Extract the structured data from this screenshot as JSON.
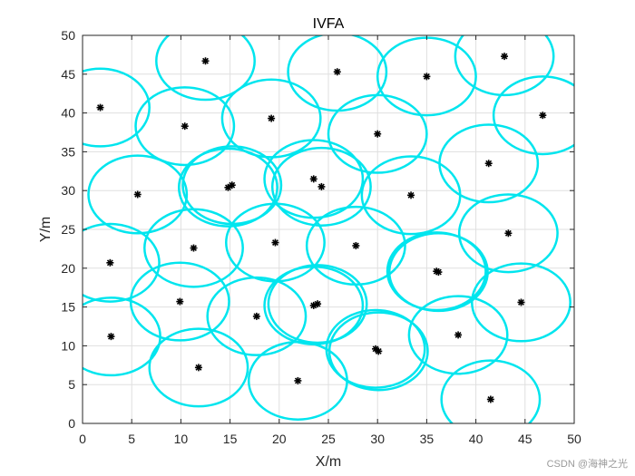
{
  "chart_data": {
    "type": "scatter",
    "title": "IVFA",
    "xlabel": "X/m",
    "ylabel": "Y/m",
    "xlim": [
      0,
      50
    ],
    "ylim": [
      0,
      50
    ],
    "xticks": [
      0,
      5,
      10,
      15,
      20,
      25,
      30,
      35,
      40,
      45,
      50
    ],
    "yticks": [
      0,
      5,
      10,
      15,
      20,
      25,
      30,
      35,
      40,
      45,
      50
    ],
    "grid": true,
    "coverage_radius": 5,
    "circle_color": "#00e5ee",
    "marker_color": "#000000",
    "nodes": [
      {
        "x": 12.5,
        "y": 46.7
      },
      {
        "x": 25.9,
        "y": 45.3
      },
      {
        "x": 35.0,
        "y": 44.7
      },
      {
        "x": 42.9,
        "y": 47.3
      },
      {
        "x": 1.8,
        "y": 40.7
      },
      {
        "x": 10.4,
        "y": 38.3
      },
      {
        "x": 19.2,
        "y": 39.3
      },
      {
        "x": 30.0,
        "y": 37.3
      },
      {
        "x": 46.8,
        "y": 39.7
      },
      {
        "x": 41.3,
        "y": 33.5
      },
      {
        "x": 5.6,
        "y": 29.5
      },
      {
        "x": 14.8,
        "y": 30.4
      },
      {
        "x": 15.2,
        "y": 30.7
      },
      {
        "x": 23.5,
        "y": 31.5
      },
      {
        "x": 24.3,
        "y": 30.5
      },
      {
        "x": 33.4,
        "y": 29.4
      },
      {
        "x": 2.8,
        "y": 20.7
      },
      {
        "x": 11.3,
        "y": 22.6
      },
      {
        "x": 19.6,
        "y": 23.3
      },
      {
        "x": 27.8,
        "y": 22.9
      },
      {
        "x": 43.3,
        "y": 24.5
      },
      {
        "x": 36.0,
        "y": 19.6
      },
      {
        "x": 36.2,
        "y": 19.5
      },
      {
        "x": 9.9,
        "y": 15.7
      },
      {
        "x": 17.7,
        "y": 13.8
      },
      {
        "x": 23.5,
        "y": 15.2
      },
      {
        "x": 23.9,
        "y": 15.4
      },
      {
        "x": 44.6,
        "y": 15.6
      },
      {
        "x": 2.9,
        "y": 11.2
      },
      {
        "x": 29.8,
        "y": 9.6
      },
      {
        "x": 30.1,
        "y": 9.3
      },
      {
        "x": 38.2,
        "y": 11.4
      },
      {
        "x": 11.8,
        "y": 7.2
      },
      {
        "x": 21.9,
        "y": 5.5
      },
      {
        "x": 41.5,
        "y": 3.1
      }
    ]
  },
  "watermark": "CSDN @海神之光"
}
